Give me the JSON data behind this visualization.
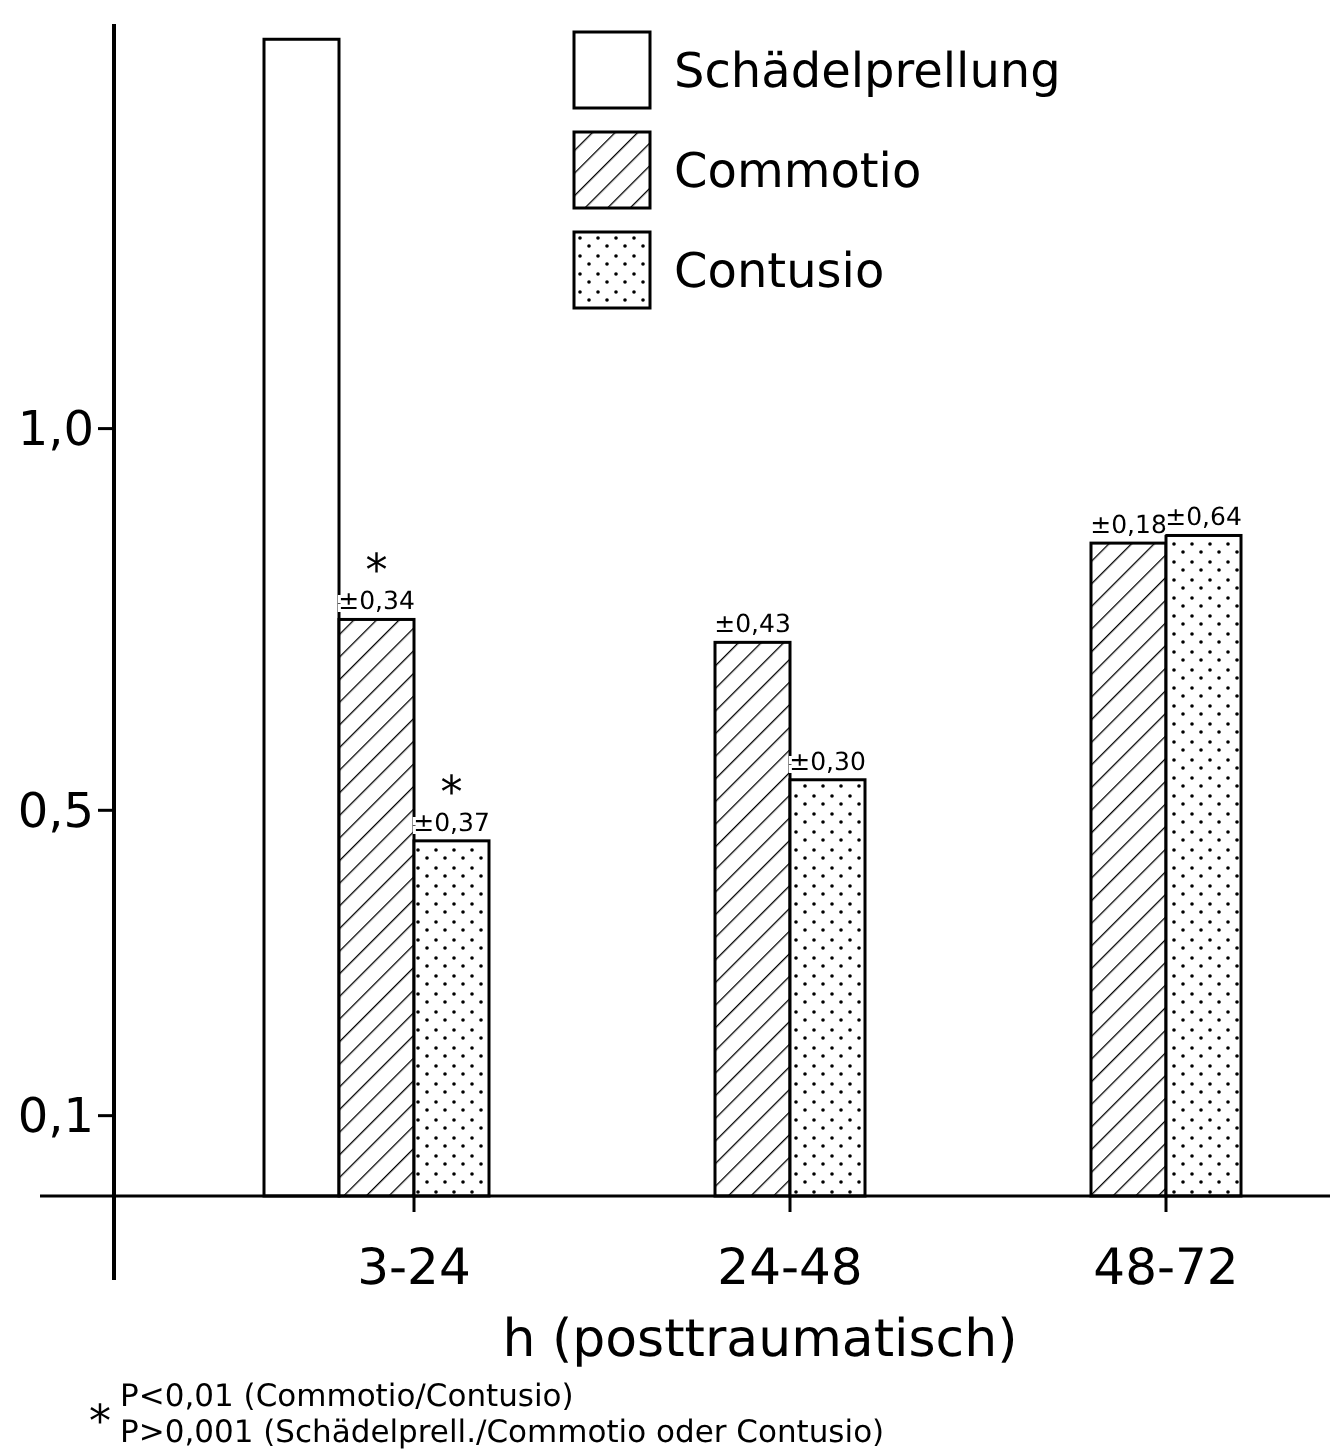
{
  "chart_data": {
    "type": "bar",
    "categories": [
      "3-24",
      "24-48",
      "48-72"
    ],
    "xlabel": "h (posttraumatisch)",
    "series": [
      {
        "name": "Schädelprellung",
        "color": "#ffffff",
        "values": [
          1.51,
          null,
          null
        ]
      },
      {
        "name": "Commotio",
        "color": "#000000",
        "values": [
          0.75,
          0.72,
          0.85
        ]
      },
      {
        "name": "Contusio",
        "color": "#000000",
        "values": [
          0.46,
          0.54,
          0.86
        ]
      }
    ],
    "ylim": [
      0,
      1.53
    ],
    "yticks": [
      {
        "value": 0.1,
        "label": "0,1"
      },
      {
        "value": 0.5,
        "label": "0,5"
      },
      {
        "value": 1.0,
        "label": "1,0"
      }
    ],
    "legend": "top right",
    "annotations": [
      {
        "text": "±0,34",
        "x": "3-24",
        "y": 0.75
      },
      {
        "text": "*",
        "x": "3-24",
        "y": 0.75
      },
      {
        "text": "±0,37",
        "x": "3-24",
        "y": 0.46
      },
      {
        "text": "*",
        "x": "3-24",
        "y": 0.46
      },
      {
        "text": "±0,43",
        "x": "24-48",
        "y": 0.72
      },
      {
        "text": "±0,30",
        "x": "24-48",
        "y": 0.54
      },
      {
        "text": "±0,18",
        "x": "48-72",
        "y": 0.85
      },
      {
        "text": "±0,64",
        "x": "48-72",
        "y": 0.86
      },
      "*",
      "P<0,01 (Commotio/Contusio)",
      "P>0,001 (Schädelprell./Commotio oder Contusio)"
    ]
  }
}
